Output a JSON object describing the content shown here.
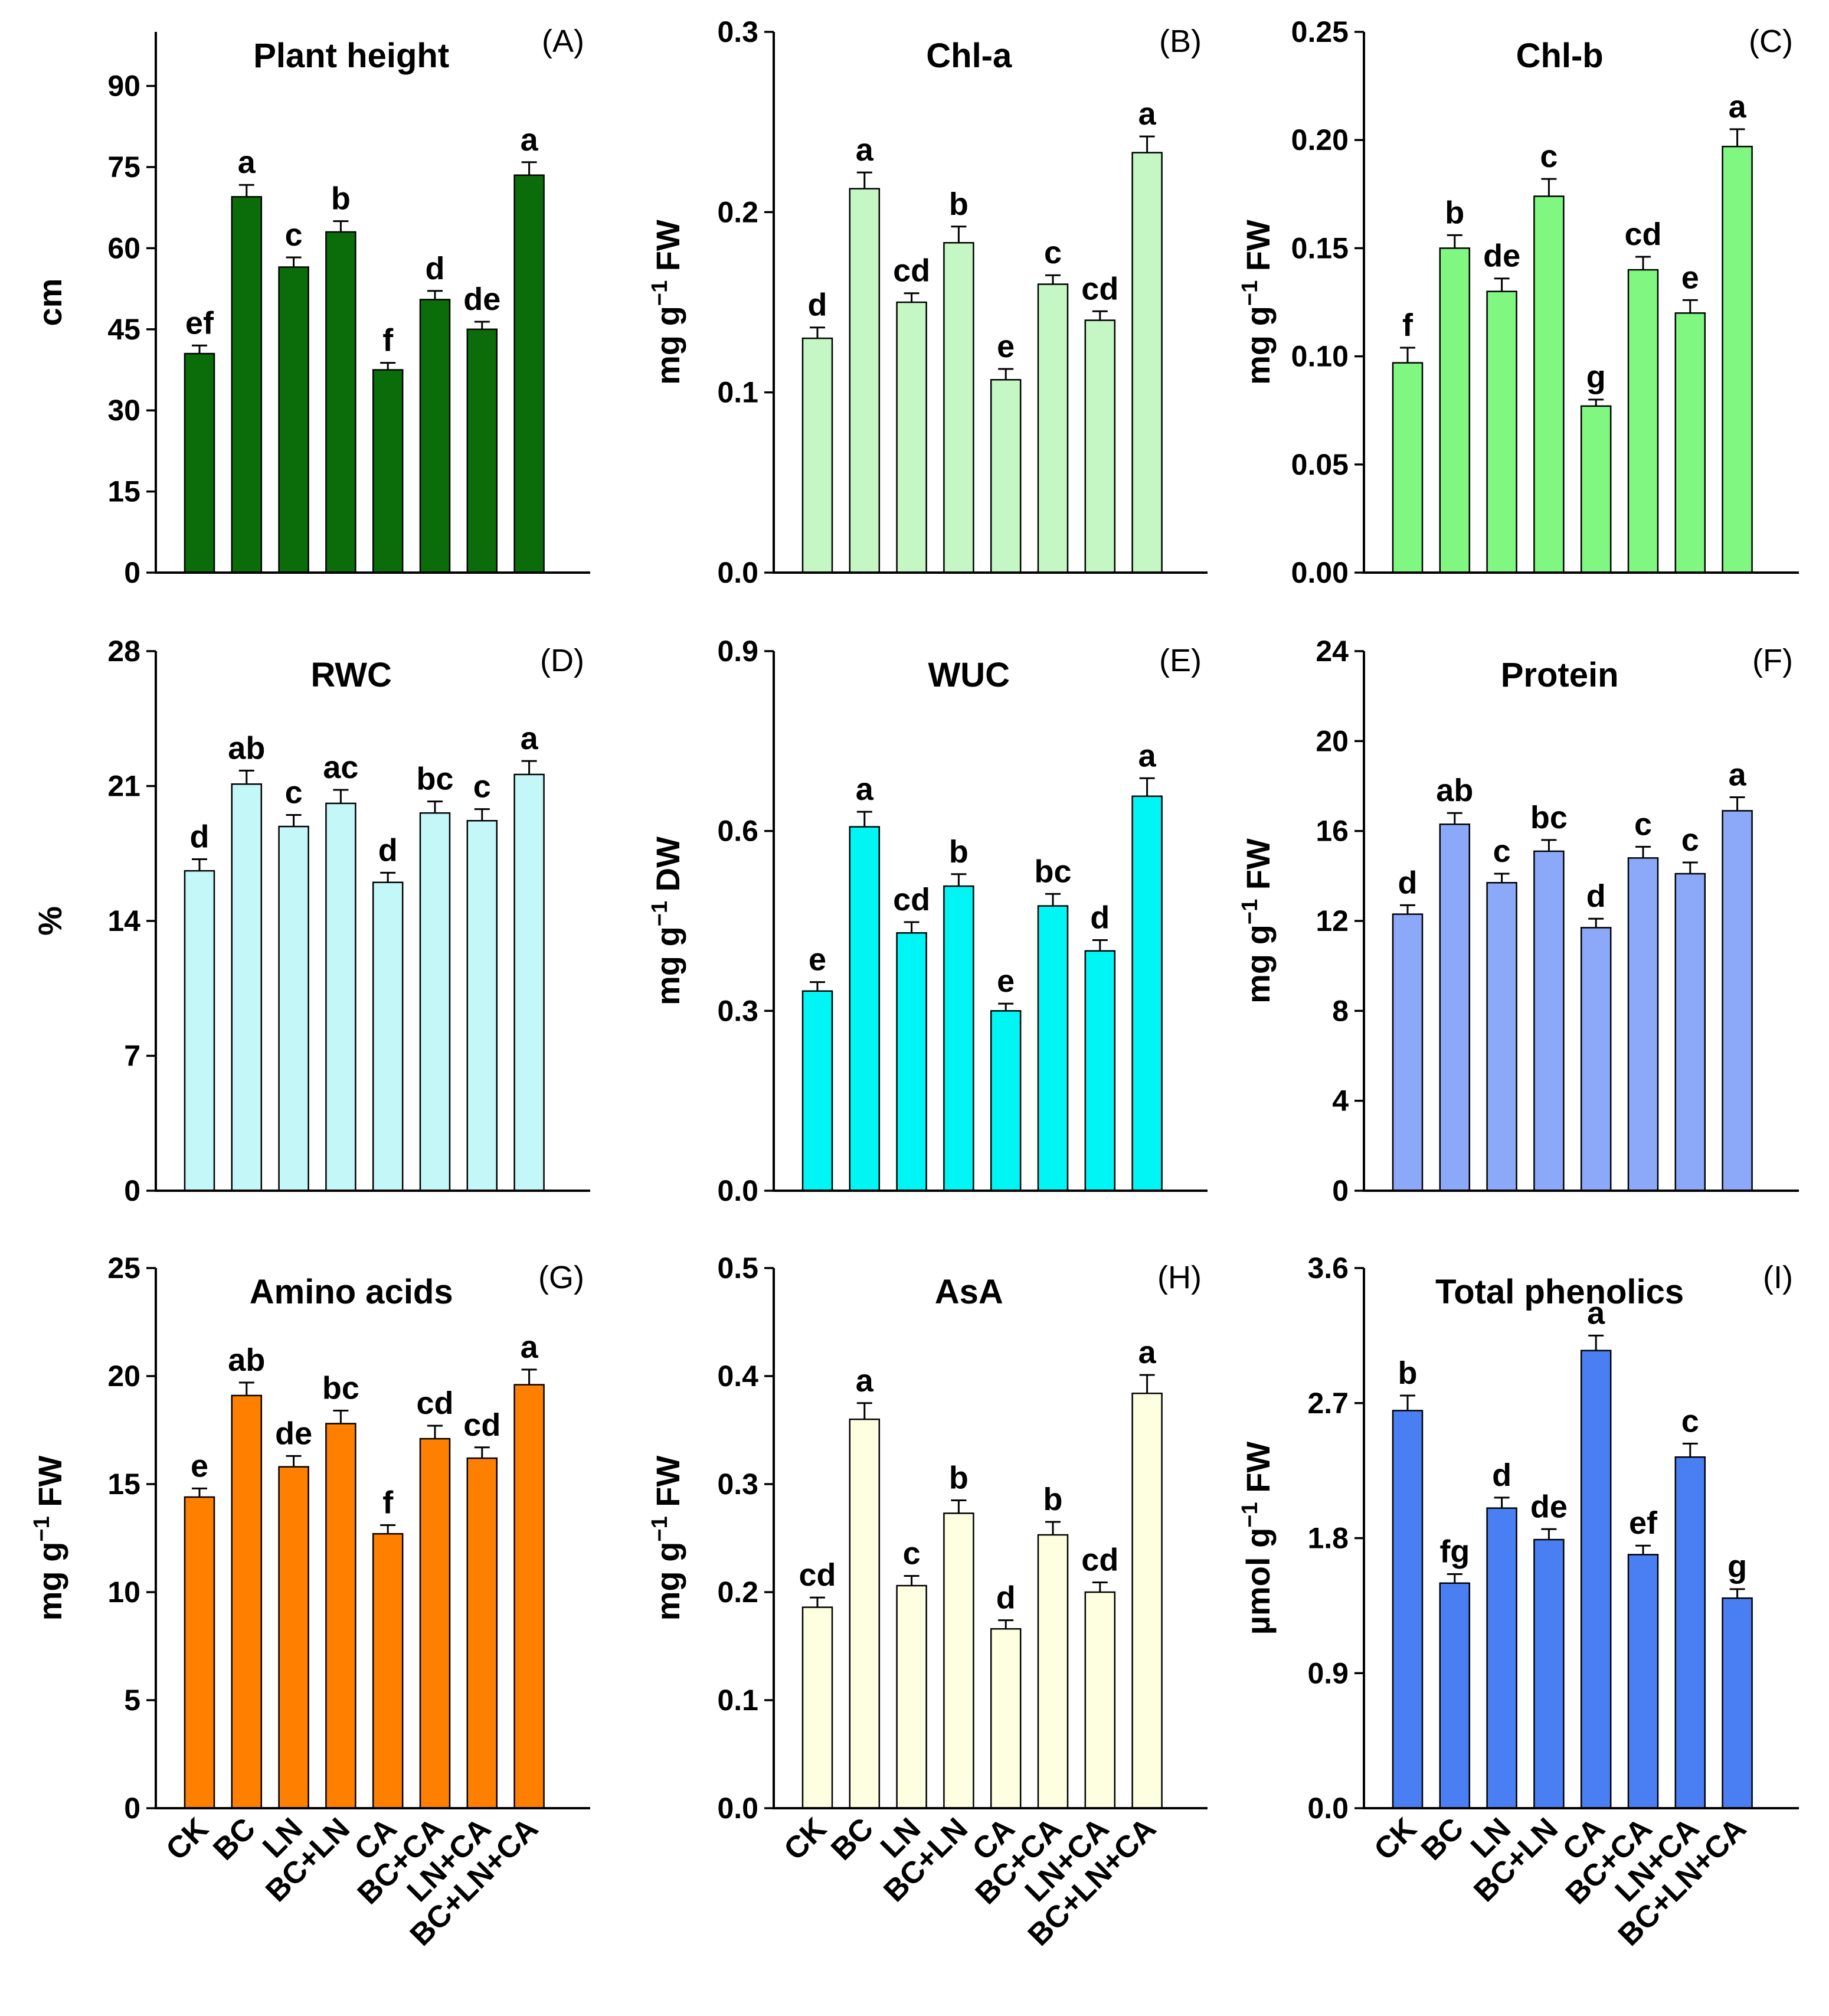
{
  "categories": [
    "CK",
    "BC",
    "LN",
    "BC+LN",
    "CA",
    "BC+CA",
    "LN+CA",
    "BC+LN+CA"
  ],
  "chart_data": [
    {
      "type": "bar",
      "panel": "(A)",
      "title": "Plant height",
      "ylabel": "cm",
      "ylim": [
        0,
        100
      ],
      "yticks": [
        "0",
        "15",
        "30",
        "45",
        "60",
        "75",
        "90"
      ],
      "yticks_values": [
        0,
        15,
        30,
        45,
        60,
        75,
        90
      ],
      "color": "#0a6d0a",
      "values": [
        40.5,
        69.5,
        56.5,
        63,
        37.5,
        50.5,
        45,
        73.5
      ],
      "errors": [
        1.5,
        2.2,
        1.8,
        2.0,
        1.3,
        1.6,
        1.4,
        2.4
      ],
      "letters": [
        "ef",
        "a",
        "c",
        "b",
        "f",
        "d",
        "de",
        "a"
      ]
    },
    {
      "type": "bar",
      "panel": "(B)",
      "title": "Chl-a",
      "ylabel": "mg g",
      "ylabel_sup": "−1",
      "ylabel_suffix": " FW",
      "ylim": [
        0,
        0.3
      ],
      "yticks": [
        "0.0",
        "0.1",
        "0.2",
        "0.3"
      ],
      "yticks_values": [
        0,
        0.1,
        0.2,
        0.3
      ],
      "color": "#c4f7c4",
      "values": [
        0.13,
        0.213,
        0.15,
        0.183,
        0.107,
        0.16,
        0.14,
        0.233
      ],
      "errors": [
        0.006,
        0.009,
        0.005,
        0.009,
        0.006,
        0.005,
        0.005,
        0.009
      ],
      "letters": [
        "d",
        "a",
        "cd",
        "b",
        "e",
        "c",
        "cd",
        "a"
      ]
    },
    {
      "type": "bar",
      "panel": "(C)",
      "title": "Chl-b",
      "ylabel": "mg g",
      "ylabel_sup": "−1",
      "ylabel_suffix": " FW",
      "ylim": [
        0,
        0.25
      ],
      "yticks": [
        "0.00",
        "0.05",
        "0.10",
        "0.15",
        "0.20",
        "0.25"
      ],
      "yticks_values": [
        0,
        0.05,
        0.1,
        0.15,
        0.2,
        0.25
      ],
      "color": "#80f780",
      "values": [
        0.097,
        0.15,
        0.13,
        0.174,
        0.077,
        0.14,
        0.12,
        0.197
      ],
      "errors": [
        0.007,
        0.006,
        0.006,
        0.008,
        0.003,
        0.006,
        0.006,
        0.008
      ],
      "letters": [
        "f",
        "b",
        "de",
        "c",
        "g",
        "cd",
        "e",
        "a"
      ]
    },
    {
      "type": "bar",
      "panel": "(D)",
      "title": "RWC",
      "ylabel": "%",
      "ylim": [
        0,
        28
      ],
      "yticks": [
        "0",
        "7",
        "14",
        "21",
        "28"
      ],
      "yticks_values": [
        0,
        7,
        14,
        21,
        28
      ],
      "color": "#c4f8f8",
      "values": [
        16.6,
        21.1,
        18.9,
        20.1,
        16.0,
        19.6,
        19.2,
        21.6
      ],
      "errors": [
        0.6,
        0.7,
        0.6,
        0.7,
        0.5,
        0.6,
        0.6,
        0.7
      ],
      "letters": [
        "d",
        "ab",
        "c",
        "ac",
        "d",
        "bc",
        "c",
        "a"
      ]
    },
    {
      "type": "bar",
      "panel": "(E)",
      "title": "WUC",
      "ylabel": "mg g",
      "ylabel_sup": "−1",
      "ylabel_suffix": " DW",
      "ylim": [
        0,
        0.9
      ],
      "yticks": [
        "0.0",
        "0.3",
        "0.6",
        "0.9"
      ],
      "yticks_values": [
        0,
        0.3,
        0.6,
        0.9
      ],
      "color": "#00f5f5",
      "values": [
        0.333,
        0.607,
        0.43,
        0.508,
        0.3,
        0.475,
        0.4,
        0.658
      ],
      "errors": [
        0.015,
        0.025,
        0.018,
        0.02,
        0.012,
        0.02,
        0.018,
        0.03
      ],
      "letters": [
        "e",
        "a",
        "cd",
        "b",
        "e",
        "bc",
        "d",
        "a"
      ]
    },
    {
      "type": "bar",
      "panel": "(F)",
      "title": "Protein",
      "ylabel": "mg g",
      "ylabel_sup": "−1",
      "ylabel_suffix": " FW",
      "ylim": [
        0,
        24
      ],
      "yticks": [
        "0",
        "4",
        "8",
        "12",
        "16",
        "20",
        "24"
      ],
      "yticks_values": [
        0,
        4,
        8,
        12,
        16,
        20,
        24
      ],
      "color": "#8ca8f8",
      "values": [
        12.3,
        16.3,
        13.7,
        15.1,
        11.7,
        14.8,
        14.1,
        16.9
      ],
      "errors": [
        0.4,
        0.5,
        0.4,
        0.5,
        0.4,
        0.5,
        0.5,
        0.6
      ],
      "letters": [
        "d",
        "ab",
        "c",
        "bc",
        "d",
        "c",
        "c",
        "a"
      ]
    },
    {
      "type": "bar",
      "panel": "(G)",
      "title": "Amino acids",
      "ylabel": "mg g",
      "ylabel_sup": "−1",
      "ylabel_suffix": " FW",
      "ylim": [
        0,
        25
      ],
      "yticks": [
        "0",
        "5",
        "10",
        "15",
        "20",
        "25"
      ],
      "yticks_values": [
        0,
        5,
        10,
        15,
        20,
        25
      ],
      "color": "#ff7f00",
      "values": [
        14.4,
        19.1,
        15.8,
        17.8,
        12.7,
        17.1,
        16.2,
        19.6
      ],
      "errors": [
        0.4,
        0.6,
        0.5,
        0.6,
        0.4,
        0.6,
        0.5,
        0.7
      ],
      "letters": [
        "e",
        "ab",
        "de",
        "bc",
        "f",
        "cd",
        "cd",
        "a"
      ]
    },
    {
      "type": "bar",
      "panel": "(H)",
      "title": "AsA",
      "ylabel": "mg g",
      "ylabel_sup": "−1",
      "ylabel_suffix": " FW",
      "ylim": [
        0,
        0.5
      ],
      "yticks": [
        "0.0",
        "0.1",
        "0.2",
        "0.3",
        "0.4",
        "0.5"
      ],
      "yticks_values": [
        0,
        0.1,
        0.2,
        0.3,
        0.4,
        0.5
      ],
      "color": "#fefee0",
      "values": [
        0.186,
        0.36,
        0.206,
        0.273,
        0.166,
        0.253,
        0.2,
        0.384
      ],
      "errors": [
        0.009,
        0.015,
        0.009,
        0.012,
        0.008,
        0.012,
        0.009,
        0.017
      ],
      "letters": [
        "cd",
        "a",
        "c",
        "b",
        "d",
        "b",
        "cd",
        "a"
      ]
    },
    {
      "type": "bar",
      "panel": "(I)",
      "title": "Total phenolics",
      "ylabel": "µmol g",
      "ylabel_sup": "−1",
      "ylabel_suffix": " FW",
      "ylim": [
        0,
        3.6
      ],
      "yticks": [
        "0.0",
        "0.9",
        "1.8",
        "2.7",
        "3.6"
      ],
      "yticks_values": [
        0,
        0.9,
        1.8,
        2.7,
        3.6
      ],
      "color": "#4a7ff4",
      "values": [
        2.65,
        1.5,
        2.0,
        1.79,
        3.05,
        1.69,
        2.34,
        1.4
      ],
      "errors": [
        0.1,
        0.06,
        0.07,
        0.07,
        0.1,
        0.06,
        0.09,
        0.06
      ],
      "letters": [
        "b",
        "fg",
        "d",
        "de",
        "a",
        "ef",
        "c",
        "g"
      ]
    }
  ]
}
